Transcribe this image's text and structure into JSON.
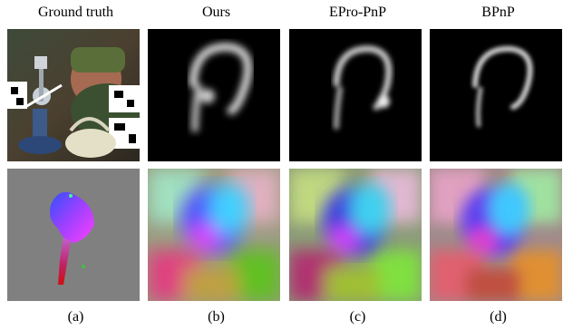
{
  "columns": [
    {
      "header": "Ground truth",
      "caption": "(a)"
    },
    {
      "header": "Ours",
      "caption": "(b)"
    },
    {
      "header": "EPro-PnP",
      "caption": "(c)"
    },
    {
      "header": "BPnP",
      "caption": "(d)"
    }
  ],
  "panels": {
    "row1": [
      "photo-of-scene",
      "heatmap-ours",
      "heatmap-epro-pnp",
      "heatmap-bpnp"
    ],
    "row2": [
      "gt-coordinate-map",
      "coordinate-map-ours",
      "coordinate-map-epro-pnp",
      "coordinate-map-bpnp"
    ]
  }
}
